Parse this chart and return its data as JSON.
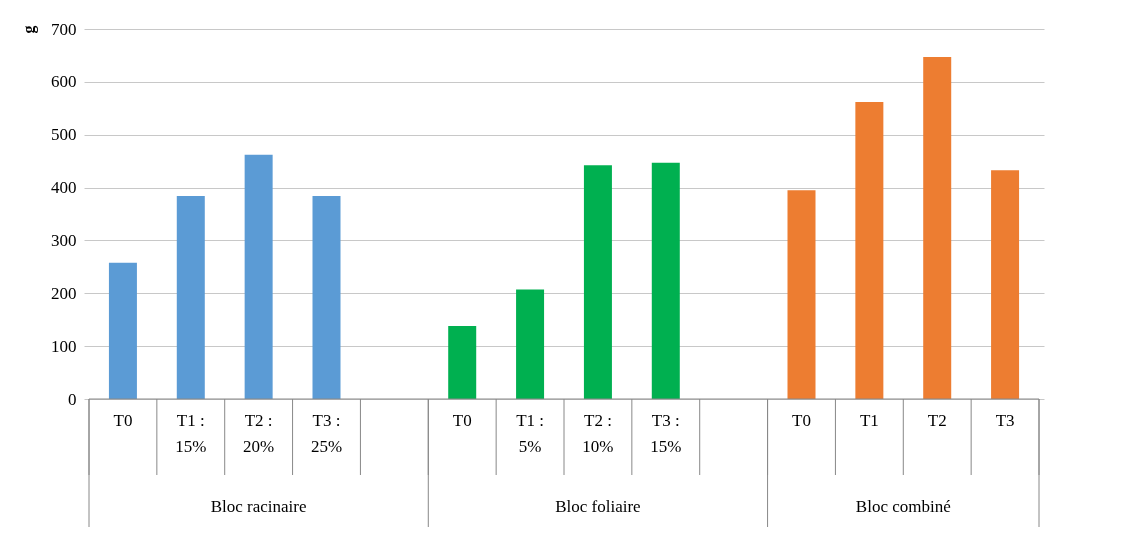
{
  "chart_data": {
    "type": "bar",
    "ylabel": "g",
    "categories": [
      "T0",
      "T1 : 15%",
      "T2 : 20%",
      "T3 : 25%",
      null,
      "T0",
      "T1 : 5%",
      "T2 : 10%",
      "T3 : 15%",
      null,
      "T0",
      "T1",
      "T2",
      "T3"
    ],
    "values": [
      258,
      384,
      462,
      384,
      null,
      138,
      207,
      442,
      447,
      null,
      395,
      562,
      647,
      433
    ],
    "colors": [
      "#5b9bd5",
      "#5b9bd5",
      "#5b9bd5",
      "#5b9bd5",
      "#5b9bd5",
      "#00b050",
      "#00b050",
      "#00b050",
      "#00b050",
      "#00b050",
      "#ed7d31",
      "#ed7d31",
      "#ed7d31",
      "#ed7d31"
    ],
    "annotations": [
      "Bloc racinaire",
      "Bloc foliaire",
      "Bloc combiné"
    ],
    "ylim": [
      0,
      700
    ],
    "yticks": [
      0,
      100,
      200,
      300,
      400,
      500,
      600,
      700
    ],
    "grid": "y"
  }
}
